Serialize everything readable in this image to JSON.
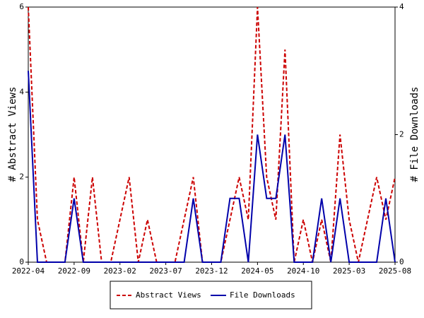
{
  "chart_data": {
    "type": "line",
    "categories": [
      "2022-04",
      null,
      null,
      null,
      null,
      "2022-09",
      null,
      null,
      null,
      null,
      "2023-02",
      null,
      null,
      null,
      null,
      "2023-07",
      null,
      null,
      null,
      null,
      "2023-12",
      null,
      null,
      null,
      null,
      "2024-05",
      null,
      null,
      null,
      null,
      "2024-10",
      null,
      null,
      null,
      null,
      "2025-03",
      null,
      null,
      null,
      null,
      "2025-08"
    ],
    "y_label": "# Abstract Views",
    "y2_label": "# File Downloads",
    "ylim": [
      0,
      6
    ],
    "yticks": [
      0,
      2,
      4,
      6
    ],
    "y2lim": [
      0,
      4
    ],
    "y2ticks": [
      0,
      2,
      4
    ],
    "series": [
      {
        "name": "Abstract Views",
        "color": "#cc0000",
        "dash": true,
        "values": [
          6,
          1,
          0,
          0,
          0,
          2,
          0,
          2,
          0,
          0,
          1,
          2,
          0,
          1,
          0,
          0,
          0,
          1,
          2,
          0,
          0,
          0,
          1,
          2,
          1,
          6,
          2,
          1,
          5,
          0,
          1,
          0,
          1,
          0,
          3,
          1,
          0,
          1,
          2,
          1,
          2
        ]
      },
      {
        "name": "File Downloads",
        "color": "#0000aa",
        "dash": false,
        "axis": "y2",
        "values": [
          3,
          0,
          0,
          0,
          0,
          1,
          0,
          0,
          0,
          0,
          0,
          0,
          0,
          0,
          0,
          0,
          0,
          0,
          1,
          0,
          0,
          0,
          1,
          1,
          0,
          2,
          1,
          1,
          2,
          0,
          0,
          0,
          1,
          0,
          1,
          0,
          0,
          0,
          0,
          1,
          0
        ]
      }
    ]
  }
}
